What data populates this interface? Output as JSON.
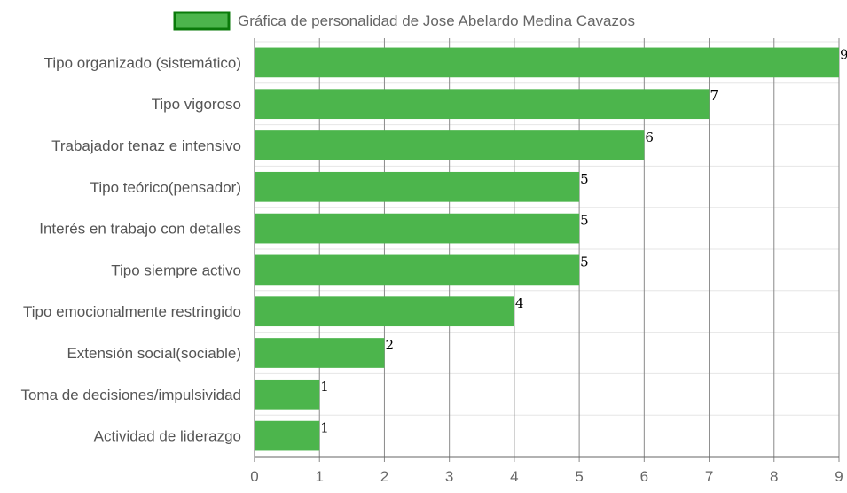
{
  "chart_data": {
    "type": "bar",
    "orientation": "horizontal",
    "categories": [
      "Tipo organizado (sistemático)",
      "Tipo vigoroso",
      "Trabajador tenaz e intensivo",
      "Tipo teórico(pensador)",
      "Interés en trabajo con detalles",
      "Tipo siempre activo",
      "Tipo emocionalmente restringido",
      "Extensión social(sociable)",
      "Toma de decisiones/impulsividad",
      "Actividad de liderazgo"
    ],
    "series": [
      {
        "name": "Gráfica de personalidad de Jose Abelardo Medina Cavazos",
        "values": [
          9,
          7,
          6,
          5,
          5,
          5,
          4,
          2,
          1,
          1
        ],
        "color": "#4cb54c",
        "border_color": "#0a7a0a"
      }
    ],
    "xlim": [
      0,
      9
    ],
    "xticks": [
      "0",
      "1",
      "2",
      "3",
      "4",
      "5",
      "6",
      "7",
      "8",
      "9"
    ],
    "grid": true,
    "legend_position": "top"
  }
}
